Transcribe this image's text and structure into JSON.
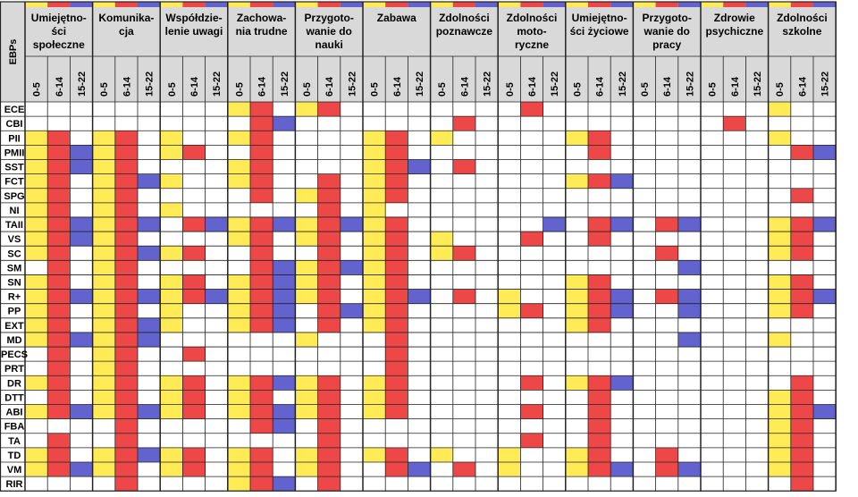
{
  "chart_data": {
    "type": "heatmap",
    "corner_label": "EBPs",
    "colors": {
      "0-5": "#ffeb55",
      "6-14": "#ee4747",
      "15-22": "#6363d0",
      "none": "#ffffff",
      "header_bg": "#d9d9d9"
    },
    "age_groups": [
      "0-5",
      "6-14",
      "15-22"
    ],
    "categories": [
      {
        "label": [
          "Umiejętno-",
          "ści",
          "społeczne"
        ]
      },
      {
        "label": [
          "Komunika-",
          "cja"
        ]
      },
      {
        "label": [
          "Współdzie-",
          "lenie uwagi"
        ]
      },
      {
        "label": [
          "Zachowa-",
          "nia trudne"
        ]
      },
      {
        "label": [
          "Przygoto-",
          "wanie do",
          "nauki"
        ]
      },
      {
        "label": [
          "Zabawa"
        ]
      },
      {
        "label": [
          "Zdolności",
          "poznawcze"
        ]
      },
      {
        "label": [
          "Zdolności",
          "moto-",
          "ryczne"
        ]
      },
      {
        "label": [
          "Umiejętno-",
          "ści życiowe"
        ]
      },
      {
        "label": [
          "Przygoto-",
          "wanie do",
          "pracy"
        ]
      },
      {
        "label": [
          "Zdrowie",
          "psychiczne"
        ]
      },
      {
        "label": [
          "Zdolności",
          "szkolne"
        ]
      }
    ],
    "rows": [
      {
        "name": "ECE",
        "cells": [
          "000",
          "000",
          "000",
          "110",
          "110",
          "000",
          "000",
          "010",
          "000",
          "000",
          "000",
          "100"
        ]
      },
      {
        "name": "CBI",
        "cells": [
          "000",
          "000",
          "000",
          "011",
          "000",
          "000",
          "010",
          "000",
          "000",
          "000",
          "010",
          "000"
        ]
      },
      {
        "name": "PII",
        "cells": [
          "110",
          "110",
          "100",
          "110",
          "000",
          "110",
          "100",
          "000",
          "110",
          "000",
          "000",
          "100"
        ]
      },
      {
        "name": "PMII",
        "cells": [
          "111",
          "110",
          "110",
          "010",
          "000",
          "110",
          "000",
          "000",
          "010",
          "000",
          "000",
          "011"
        ]
      },
      {
        "name": "SST",
        "cells": [
          "111",
          "110",
          "000",
          "110",
          "000",
          "111",
          "010",
          "000",
          "000",
          "000",
          "000",
          "000"
        ]
      },
      {
        "name": "FCT",
        "cells": [
          "110",
          "111",
          "100",
          "110",
          "010",
          "110",
          "000",
          "000",
          "111",
          "000",
          "000",
          "000"
        ]
      },
      {
        "name": "SPG",
        "cells": [
          "110",
          "110",
          "000",
          "010",
          "110",
          "110",
          "000",
          "000",
          "000",
          "000",
          "000",
          "010"
        ]
      },
      {
        "name": "NI",
        "cells": [
          "110",
          "110",
          "100",
          "000",
          "010",
          "100",
          "000",
          "000",
          "000",
          "000",
          "000",
          "000"
        ]
      },
      {
        "name": "TAII",
        "cells": [
          "111",
          "111",
          "011",
          "111",
          "111",
          "110",
          "000",
          "001",
          "011",
          "011",
          "000",
          "111"
        ]
      },
      {
        "name": "VS",
        "cells": [
          "111",
          "110",
          "000",
          "110",
          "110",
          "110",
          "100",
          "010",
          "010",
          "000",
          "000",
          "110"
        ]
      },
      {
        "name": "SC",
        "cells": [
          "110",
          "111",
          "110",
          "010",
          "010",
          "110",
          "110",
          "000",
          "000",
          "010",
          "000",
          "110"
        ]
      },
      {
        "name": "SM",
        "cells": [
          "010",
          "110",
          "000",
          "011",
          "111",
          "110",
          "000",
          "000",
          "000",
          "001",
          "000",
          "000"
        ]
      },
      {
        "name": "SN",
        "cells": [
          "110",
          "110",
          "110",
          "111",
          "110",
          "110",
          "000",
          "000",
          "110",
          "000",
          "000",
          "110"
        ]
      },
      {
        "name": "R+",
        "cells": [
          "111",
          "111",
          "111",
          "111",
          "110",
          "111",
          "010",
          "100",
          "111",
          "011",
          "000",
          "111"
        ]
      },
      {
        "name": "PP",
        "cells": [
          "110",
          "110",
          "100",
          "111",
          "011",
          "110",
          "000",
          "110",
          "111",
          "001",
          "000",
          "110"
        ]
      },
      {
        "name": "EXT",
        "cells": [
          "110",
          "111",
          "100",
          "111",
          "010",
          "110",
          "000",
          "000",
          "110",
          "000",
          "000",
          "000"
        ]
      },
      {
        "name": "MD",
        "cells": [
          "111",
          "111",
          "000",
          "000",
          "100",
          "010",
          "000",
          "000",
          "000",
          "001",
          "000",
          "100"
        ]
      },
      {
        "name": "PECS",
        "cells": [
          "010",
          "110",
          "010",
          "000",
          "000",
          "010",
          "000",
          "000",
          "000",
          "000",
          "000",
          "000"
        ]
      },
      {
        "name": "PRT",
        "cells": [
          "010",
          "110",
          "000",
          "000",
          "000",
          "010",
          "000",
          "000",
          "000",
          "000",
          "000",
          "000"
        ]
      },
      {
        "name": "DR",
        "cells": [
          "110",
          "110",
          "110",
          "111",
          "110",
          "110",
          "000",
          "010",
          "111",
          "000",
          "000",
          "010"
        ]
      },
      {
        "name": "DTT",
        "cells": [
          "010",
          "110",
          "110",
          "110",
          "110",
          "110",
          "000",
          "000",
          "010",
          "000",
          "000",
          "110"
        ]
      },
      {
        "name": "ABI",
        "cells": [
          "111",
          "111",
          "110",
          "111",
          "110",
          "110",
          "000",
          "010",
          "010",
          "000",
          "000",
          "111"
        ]
      },
      {
        "name": "FBA",
        "cells": [
          "000",
          "010",
          "000",
          "011",
          "010",
          "000",
          "000",
          "000",
          "010",
          "000",
          "000",
          "110"
        ]
      },
      {
        "name": "TA",
        "cells": [
          "010",
          "010",
          "000",
          "000",
          "010",
          "000",
          "000",
          "010",
          "010",
          "000",
          "000",
          "110"
        ]
      },
      {
        "name": "TD",
        "cells": [
          "110",
          "111",
          "110",
          "110",
          "110",
          "110",
          "100",
          "100",
          "110",
          "010",
          "000",
          "110"
        ]
      },
      {
        "name": "VM",
        "cells": [
          "111",
          "110",
          "110",
          "110",
          "110",
          "011",
          "010",
          "100",
          "111",
          "011",
          "000",
          "110"
        ]
      },
      {
        "name": "RIR",
        "cells": [
          "000",
          "010",
          "000",
          "111",
          "010",
          "000",
          "000",
          "000",
          "000",
          "000",
          "000",
          "010"
        ]
      }
    ]
  }
}
